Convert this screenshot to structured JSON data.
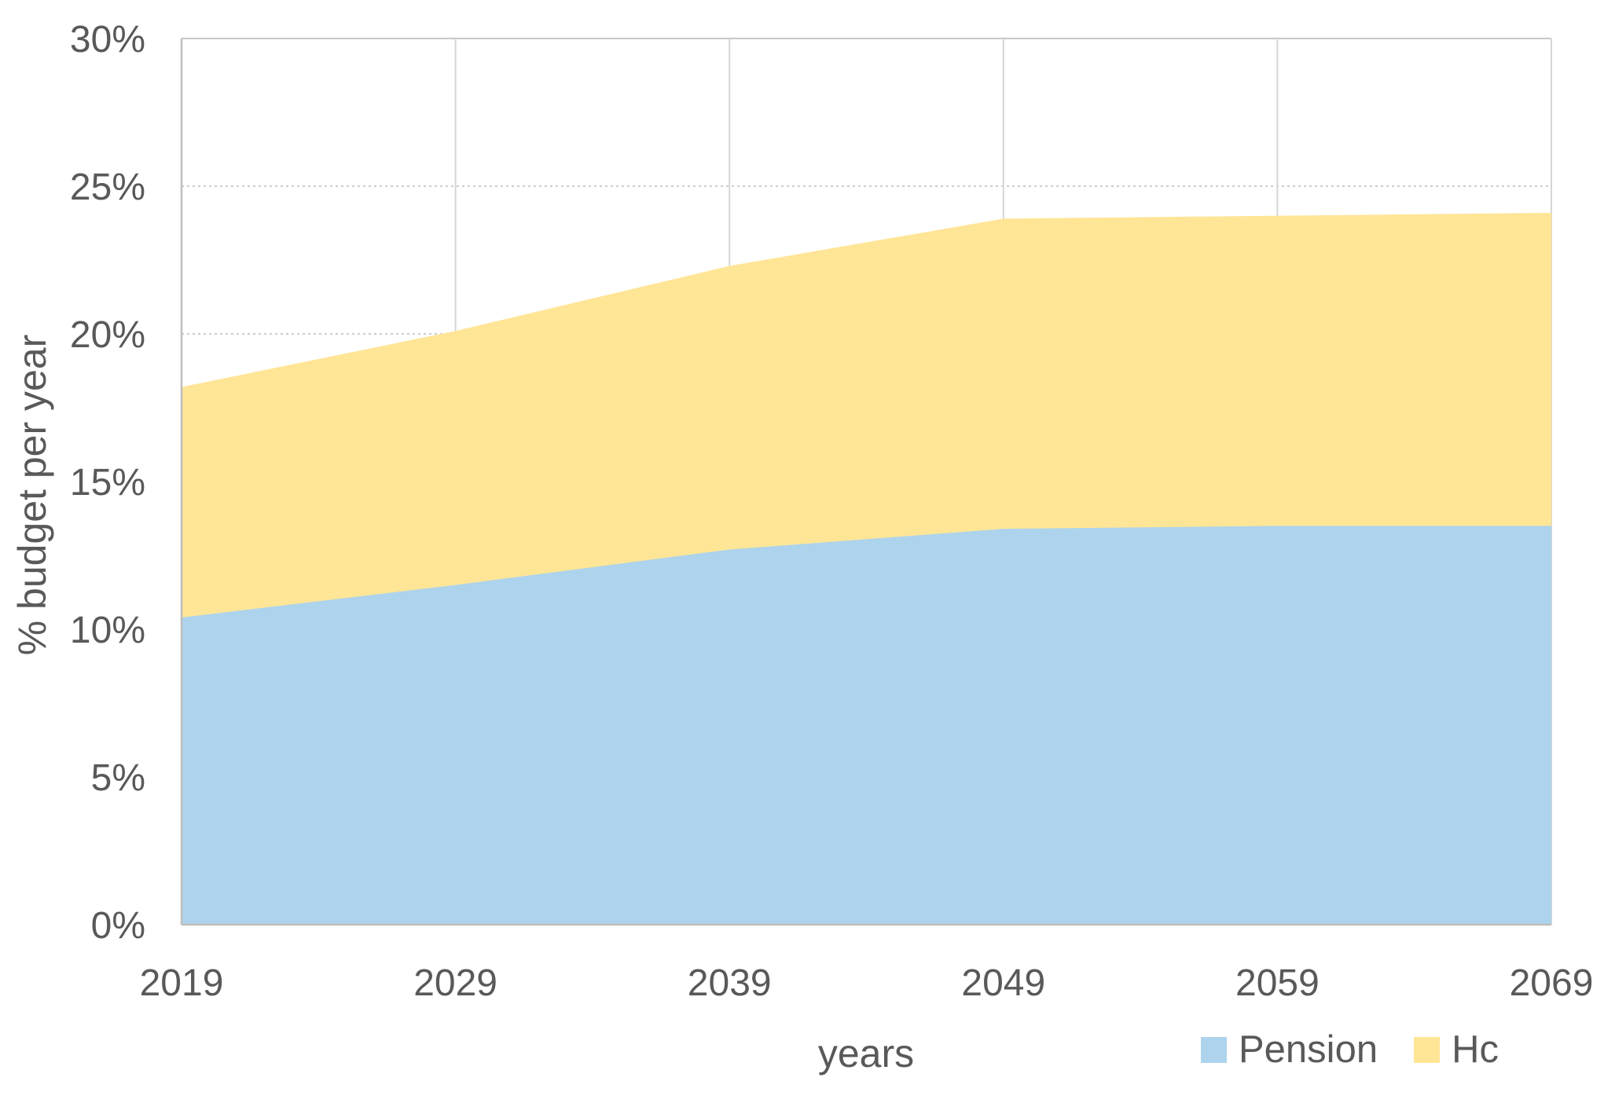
{
  "chart_data": {
    "type": "area",
    "stacked": true,
    "title": "",
    "xlabel": "years",
    "ylabel": "% budget per year",
    "categories": [
      "2019",
      "2029",
      "2039",
      "2049",
      "2059",
      "2069"
    ],
    "series": [
      {
        "name": "Pension",
        "color": "#ADD4EC",
        "values": [
          10.4,
          11.5,
          12.7,
          13.4,
          13.5,
          13.5
        ]
      },
      {
        "name": "Hc",
        "color": "#FFE596",
        "values": [
          7.8,
          8.6,
          9.6,
          10.5,
          10.5,
          10.6
        ]
      }
    ],
    "stacked_totals": [
      18.2,
      20.1,
      22.3,
      23.9,
      24.0,
      24.1
    ],
    "ylim": [
      0,
      30
    ],
    "ytick_step": 5,
    "ytick_labels": [
      "0%",
      "5%",
      "10%",
      "15%",
      "20%",
      "25%",
      "30%"
    ],
    "grid": true,
    "legend_position": "bottom-right",
    "colors": {
      "tick_text": "#595959",
      "gridline": "#CCCCCC",
      "axis_line": "#BFBFBF"
    }
  }
}
